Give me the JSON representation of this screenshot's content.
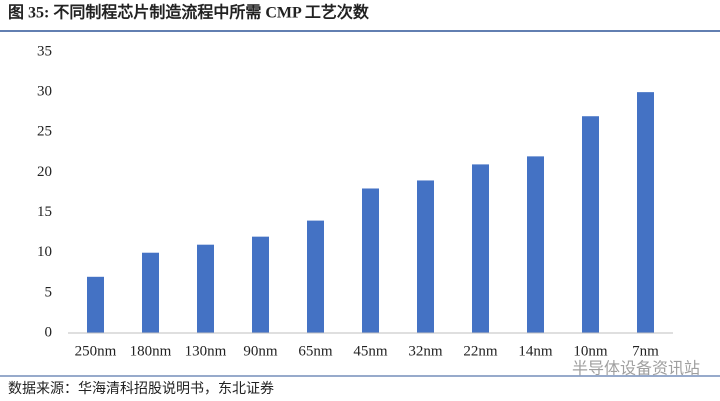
{
  "chart_data": {
    "type": "bar",
    "title": "图 35: 不同制程芯片制造流程中所需 CMP 工艺次数",
    "categories": [
      "250nm",
      "180nm",
      "130nm",
      "90nm",
      "65nm",
      "45nm",
      "32nm",
      "22nm",
      "14nm",
      "10nm",
      "7nm"
    ],
    "values": [
      7,
      10,
      11,
      12,
      14,
      18,
      19,
      21,
      22,
      27,
      30
    ],
    "color": "#4472c4",
    "ylim": [
      0,
      35
    ],
    "yticks": [
      0,
      5,
      10,
      15,
      20,
      25,
      30,
      35
    ],
    "grid": false,
    "source": "数据来源：华海清科招股说明书，东北证券",
    "watermark": "半导体设备资讯站"
  }
}
